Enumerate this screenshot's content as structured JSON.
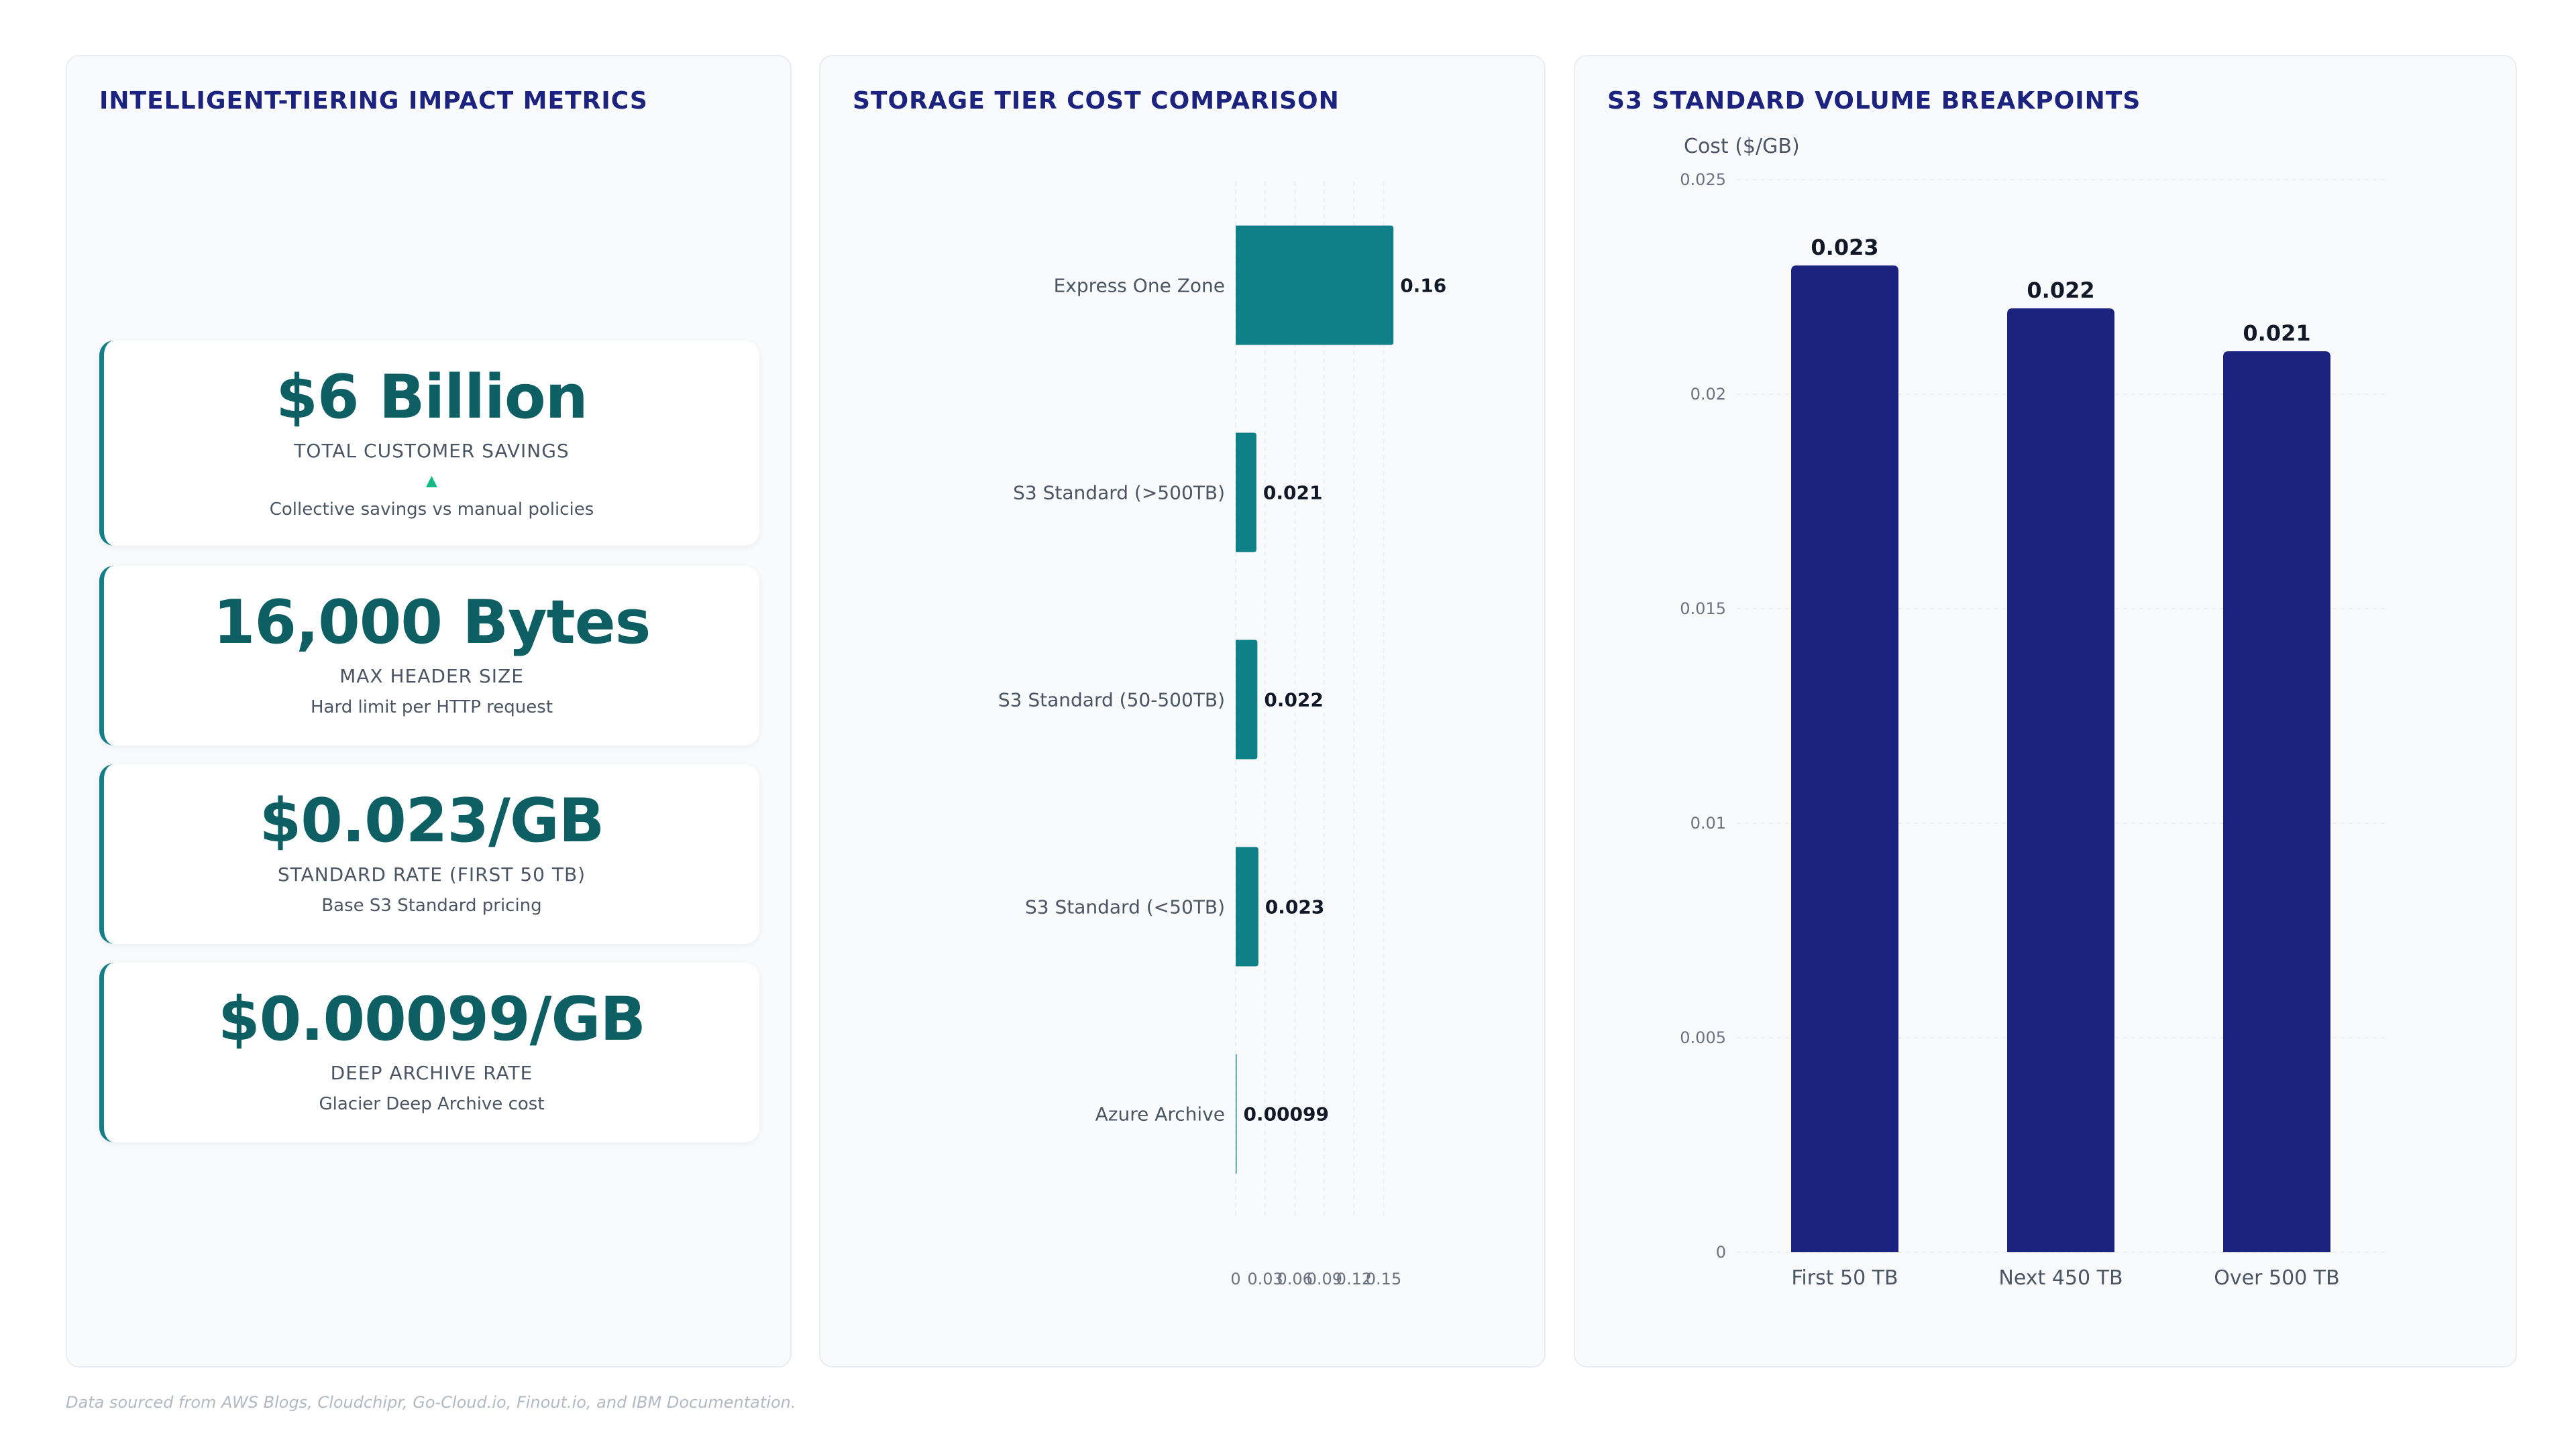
{
  "panels": {
    "metrics": {
      "title": "INTELLIGENT-TIERING IMPACT METRICS",
      "cards": [
        {
          "value": "$6 Billion",
          "label": "TOTAL CUSTOMER SAVINGS",
          "trend": "▲",
          "description": "Collective savings vs manual policies"
        },
        {
          "value": "16,000 Bytes",
          "label": "MAX HEADER SIZE",
          "description": "Hard limit per HTTP request"
        },
        {
          "value": "$0.023/GB",
          "label": "STANDARD RATE (FIRST 50 TB)",
          "description": "Base S3 Standard pricing"
        },
        {
          "value": "$0.00099/GB",
          "label": "DEEP ARCHIVE RATE",
          "description": "Glacier Deep Archive cost"
        }
      ]
    },
    "tiers": {
      "title": "STORAGE TIER COST COMPARISON"
    },
    "volume": {
      "title": "S3 STANDARD VOLUME BREAKPOINTS"
    }
  },
  "chart_data": [
    {
      "type": "bar",
      "orientation": "horizontal",
      "title": "STORAGE TIER COST COMPARISON",
      "categories": [
        "Express One Zone",
        "S3 Standard (>500TB)",
        "S3 Standard (50-500TB)",
        "S3 Standard (<50TB)",
        "Azure Archive"
      ],
      "values": [
        0.16,
        0.021,
        0.022,
        0.023,
        0.00099
      ],
      "value_labels": [
        "0.16",
        "0.021",
        "0.022",
        "0.023",
        "0.00099"
      ],
      "xlim": [
        0,
        0.18
      ],
      "x_ticks": [
        0,
        0.03,
        0.06,
        0.09,
        0.12,
        0.15
      ],
      "x_tick_labels": [
        "0",
        "0.03",
        "0.06",
        "0.09",
        "0.12",
        "0.15"
      ],
      "grid": true,
      "color": "#0f8088"
    },
    {
      "type": "bar",
      "title": "S3 STANDARD VOLUME BREAKPOINTS",
      "ylabel": "Cost ($/GB)",
      "categories": [
        "First 50 TB",
        "Next 450 TB",
        "Over 500 TB"
      ],
      "values": [
        0.023,
        0.022,
        0.021
      ],
      "value_labels": [
        "0.023",
        "0.022",
        "0.021"
      ],
      "ylim": [
        0,
        0.025
      ],
      "y_ticks": [
        0,
        0.005,
        0.01,
        0.015,
        0.02,
        0.025
      ],
      "y_tick_labels": [
        "0",
        "0.005",
        "0.01",
        "0.015",
        "0.02",
        "0.025"
      ],
      "grid": true,
      "color": "#1b237e"
    }
  ],
  "footnote": "Data sourced from AWS Blogs, Cloudchipr, Go-Cloud.io, Finout.io, and IBM Documentation."
}
